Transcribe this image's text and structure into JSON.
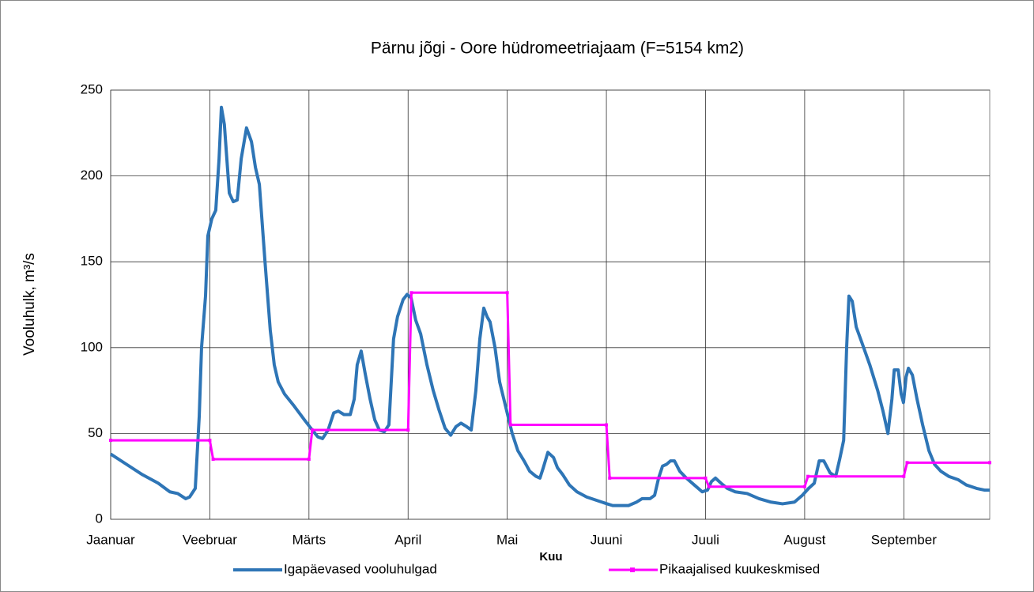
{
  "chart_data": {
    "type": "line",
    "title": "Pärnu jõgi - Oore hüdromeetriajaam (F=5154 km2)",
    "x_label": "Kuu",
    "y_label": "Vooluhulk, m³/s",
    "xlim": [
      0,
      266
    ],
    "xticks": [
      {
        "value": 0,
        "label": "Jaanuar"
      },
      {
        "value": 30,
        "label": "Veebruar"
      },
      {
        "value": 60,
        "label": "Märts"
      },
      {
        "value": 90,
        "label": "April"
      },
      {
        "value": 120,
        "label": "Mai"
      },
      {
        "value": 150,
        "label": "Juuni"
      },
      {
        "value": 180,
        "label": "Juuli"
      },
      {
        "value": 210,
        "label": "August"
      },
      {
        "value": 240,
        "label": "September"
      }
    ],
    "ylim": [
      0,
      250
    ],
    "yticks": [
      0,
      50,
      100,
      150,
      200,
      250
    ],
    "grid": true,
    "legend": "bottom",
    "series": [
      {
        "name": "Igapäevased vooluhulgad",
        "color": "#2e75b6",
        "marker": false,
        "x": [
          0,
          4.8,
          9.6,
          14.4,
          17.9,
          20.3,
          22.7,
          23.9,
          25.6,
          26.8,
          27.5,
          28.7,
          29.4,
          30.6,
          31.8,
          32.8,
          33.5,
          34.4,
          35.9,
          37.1,
          38.3,
          39.5,
          41.1,
          42.6,
          43.8,
          45.0,
          46.7,
          48.3,
          49.5,
          50.7,
          52.6,
          55.5,
          58.6,
          61.0,
          62.7,
          64.1,
          65.8,
          67.5,
          68.9,
          70.6,
          72.5,
          73.7,
          74.6,
          75.8,
          77.0,
          78.5,
          79.9,
          81.3,
          82.8,
          84.2,
          85.6,
          86.8,
          88.5,
          89.7,
          90.9,
          92.3,
          93.8,
          95.7,
          97.6,
          99.3,
          101.2,
          102.9,
          104.5,
          106.0,
          107.7,
          109.1,
          110.5,
          111.7,
          112.9,
          113.9,
          114.8,
          116.3,
          117.7,
          119.6,
          121.5,
          123.2,
          125.1,
          126.8,
          128.7,
          129.9,
          130.9,
          132.3,
          134.0,
          135.2,
          136.8,
          138.8,
          141.1,
          144.0,
          147.1,
          150.2,
          151.9,
          154.3,
          156.7,
          159.1,
          160.8,
          163.2,
          164.6,
          165.8,
          167.0,
          168.2,
          169.4,
          170.6,
          172.2,
          174.2,
          176.6,
          179.0,
          180.6,
          181.8,
          183.0,
          184.7,
          186.6,
          189.0,
          192.6,
          196.2,
          199.8,
          203.3,
          206.9,
          209.3,
          211.2,
          212.9,
          214.4,
          215.8,
          217.7,
          219.4,
          220.6,
          221.8,
          222.7,
          223.4,
          224.4,
          225.6,
          227.3,
          229.7,
          232.1,
          233.7,
          235.2,
          236.4,
          237.1,
          238.3,
          239.2,
          239.9,
          240.7,
          241.4,
          242.6,
          244.0,
          245.7,
          247.6,
          249.3,
          251.2,
          253.6,
          256.5,
          258.9,
          262.0,
          264.4,
          266.0
        ],
        "values": [
          38,
          32,
          26,
          21,
          16,
          15,
          12,
          13,
          18,
          60,
          100,
          130,
          165,
          175,
          180,
          210,
          240,
          230,
          190,
          185,
          186,
          210,
          228,
          220,
          205,
          195,
          150,
          110,
          90,
          80,
          73,
          66,
          58,
          52,
          48,
          47,
          52,
          62,
          63,
          61,
          61,
          70,
          90,
          98,
          85,
          70,
          58,
          52,
          51,
          55,
          105,
          118,
          128,
          131,
          129,
          116,
          108,
          90,
          75,
          64,
          53,
          49,
          54,
          56,
          54,
          52,
          75,
          105,
          123,
          118,
          115,
          100,
          80,
          65,
          50,
          40,
          34,
          28,
          25,
          24,
          30,
          39,
          36,
          30,
          26,
          20,
          16,
          13,
          11,
          9,
          8,
          8,
          8,
          10,
          12,
          12,
          14,
          24,
          31,
          32,
          34,
          34,
          28,
          24,
          20,
          16,
          17,
          22,
          24,
          21,
          18,
          16,
          15,
          12,
          10,
          9,
          10,
          14,
          18,
          21,
          34,
          34,
          27,
          25,
          35,
          46,
          100,
          130,
          127,
          112,
          103,
          90,
          75,
          63,
          50,
          70,
          87,
          87,
          73,
          68,
          83,
          88,
          84,
          70,
          55,
          40,
          32,
          28,
          25,
          23,
          20,
          18,
          17,
          17
        ]
      },
      {
        "name": "Pikaajalised kuukeskmised",
        "color": "#ff00ff",
        "marker": true,
        "x": [
          0,
          30,
          31,
          60,
          61,
          90,
          91,
          120,
          121,
          150,
          151,
          180,
          181,
          210,
          211,
          240,
          241,
          266
        ],
        "values": [
          46,
          46,
          35,
          35,
          52,
          52,
          132,
          132,
          55,
          55,
          24,
          24,
          19,
          19,
          25,
          25,
          33,
          33
        ]
      }
    ]
  }
}
